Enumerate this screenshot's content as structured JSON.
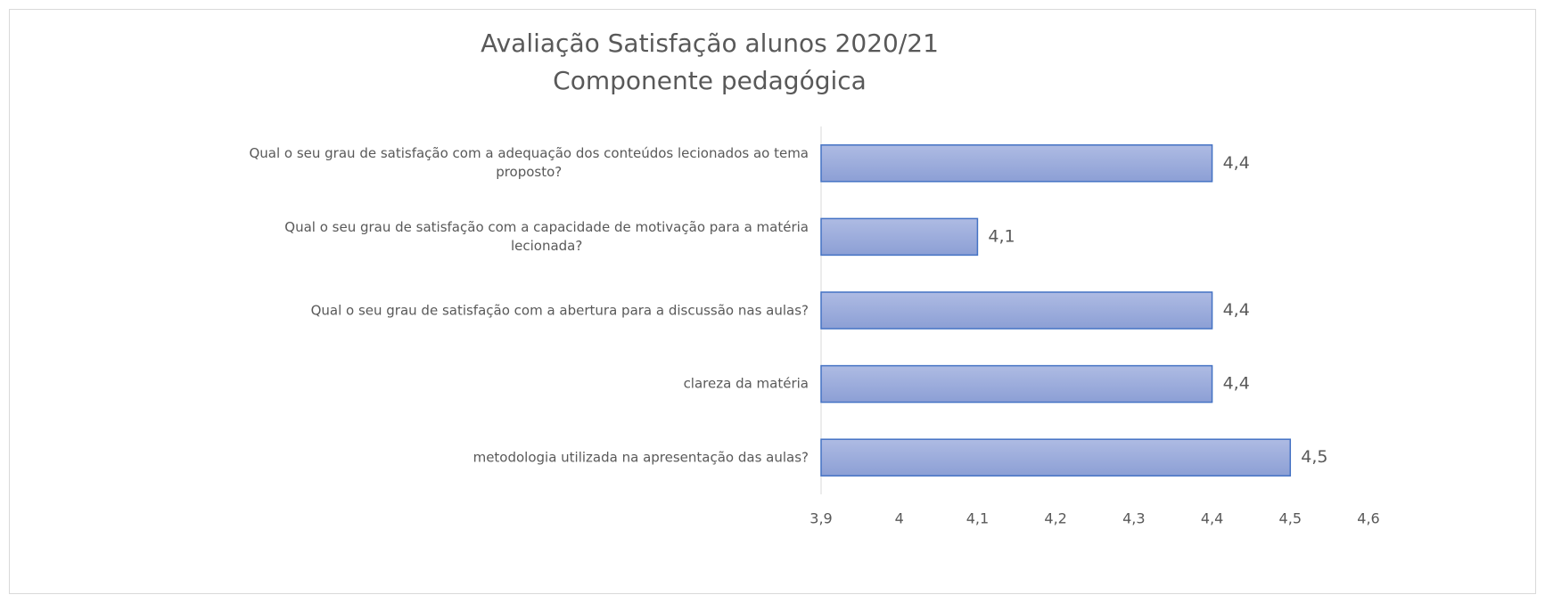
{
  "chart_data": {
    "type": "barh",
    "title": "Avaliação Satisfação alunos 2020/21",
    "subtitle": "Componente pedagógica",
    "categories": [
      "Qual o seu grau de satisfação com a adequação dos conteúdos lecionados ao tema\nproposto?",
      "Qual o seu grau de satisfação com a capacidade de motivação para a matéria\nlecionada?",
      "Qual o seu grau de satisfação com a abertura para a discussão nas aulas?",
      "clareza da matéria",
      "metodologia utilizada na apresentação das aulas?"
    ],
    "values": [
      4.4,
      4.1,
      4.4,
      4.4,
      4.5
    ],
    "value_labels": [
      "4,4",
      "4,1",
      "4,4",
      "4,4",
      "4,5"
    ],
    "color": "#4472c4",
    "xlim": [
      3.9,
      4.6
    ],
    "xticks": [
      {
        "value": 3.9,
        "label": "3,9"
      },
      4,
      {
        "value": 4.1,
        "label": "4,1"
      },
      {
        "value": 4.2,
        "label": "4,2"
      },
      {
        "value": 4.3,
        "label": "4,3"
      },
      {
        "value": 4.4,
        "label": "4,4"
      },
      {
        "value": 4.5,
        "label": "4,5"
      },
      {
        "value": 4.6,
        "label": "4,6"
      }
    ],
    "grid": false
  }
}
